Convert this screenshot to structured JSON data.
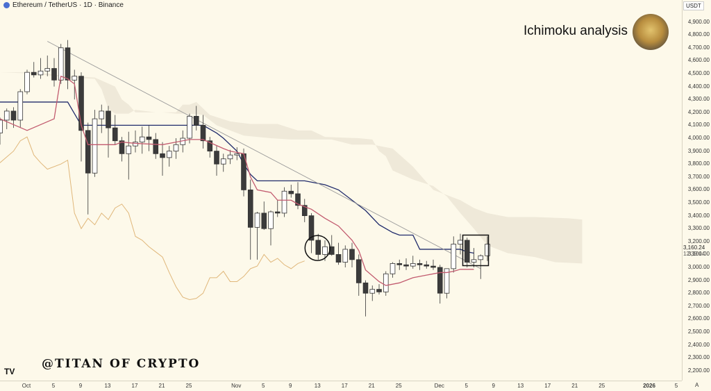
{
  "header": {
    "symbol_label": "Ethereum / TetherUS · 1D · Binance"
  },
  "title": "Ichimoku analysis",
  "watermark": "@TITAN OF CRYPTO",
  "logo_text": "TV",
  "currency_button": "USDT",
  "last_price": "3,160.24",
  "countdown": "12:39:14",
  "auto_button": "A",
  "colors": {
    "background": "#fdf9ea",
    "up": "#ffffff",
    "down": "#3b3b3b",
    "conversion": "#c25b6f",
    "base": "#1f2a6b",
    "lagging": "#e0b77a",
    "cloud": "#ece6d6",
    "trendline": "#999999"
  },
  "chart_data": {
    "type": "candlestick",
    "ylim": [
      2100,
      4950
    ],
    "y_ticks": [
      "4,900.00",
      "4,800.00",
      "4,700.00",
      "4,600.00",
      "4,500.00",
      "4,400.00",
      "4,300.00",
      "4,200.00",
      "4,100.00",
      "4,000.00",
      "3,900.00",
      "3,800.00",
      "3,700.00",
      "3,600.00",
      "3,500.00",
      "3,400.00",
      "3,300.00",
      "3,200.00",
      "3,100.00",
      "3,000.00",
      "2,900.00",
      "2,800.00",
      "2,700.00",
      "2,600.00",
      "2,500.00",
      "2,400.00",
      "2,300.00",
      "2,200.00"
    ],
    "x_ticks": [
      {
        "label": "Oct",
        "day": 0
      },
      {
        "label": "5",
        "day": 4
      },
      {
        "label": "9",
        "day": 8
      },
      {
        "label": "13",
        "day": 12
      },
      {
        "label": "17",
        "day": 16
      },
      {
        "label": "21",
        "day": 20
      },
      {
        "label": "25",
        "day": 24
      },
      {
        "label": "Nov",
        "day": 31
      },
      {
        "label": "5",
        "day": 35
      },
      {
        "label": "9",
        "day": 39
      },
      {
        "label": "13",
        "day": 43
      },
      {
        "label": "17",
        "day": 47
      },
      {
        "label": "21",
        "day": 51
      },
      {
        "label": "25",
        "day": 55
      },
      {
        "label": "Dec",
        "day": 61
      },
      {
        "label": "5",
        "day": 65
      },
      {
        "label": "9",
        "day": 69
      },
      {
        "label": "13",
        "day": 73
      },
      {
        "label": "17",
        "day": 77
      },
      {
        "label": "21",
        "day": 81
      },
      {
        "label": "25",
        "day": 85
      },
      {
        "label": "2026",
        "day": 92
      },
      {
        "label": "5",
        "day": 96
      }
    ],
    "candles": [
      [
        4040,
        4160,
        3950,
        4140
      ],
      [
        4140,
        4230,
        4070,
        4210
      ],
      [
        4210,
        4240,
        4080,
        4140
      ],
      [
        4140,
        4380,
        4080,
        4360
      ],
      [
        4360,
        4530,
        4340,
        4510
      ],
      [
        4510,
        4590,
        4470,
        4490
      ],
      [
        4490,
        4620,
        4460,
        4520
      ],
      [
        4520,
        4640,
        4480,
        4540
      ],
      [
        4540,
        4620,
        4400,
        4450
      ],
      [
        4450,
        4730,
        4420,
        4700
      ],
      [
        4700,
        4760,
        4380,
        4450
      ],
      [
        4450,
        4530,
        4300,
        4480
      ],
      [
        4480,
        4510,
        3820,
        4060
      ],
      [
        4060,
        4120,
        3410,
        3730
      ],
      [
        3730,
        4220,
        3700,
        4150
      ],
      [
        4150,
        4260,
        4040,
        4210
      ],
      [
        4210,
        4250,
        3850,
        4080
      ],
      [
        4080,
        4180,
        3950,
        3980
      ],
      [
        3980,
        4010,
        3820,
        3880
      ],
      [
        3880,
        4050,
        3680,
        3940
      ],
      [
        3940,
        4060,
        3890,
        3970
      ],
      [
        3970,
        4090,
        3880,
        4010
      ],
      [
        4010,
        4100,
        3900,
        3990
      ],
      [
        3990,
        4040,
        3840,
        3880
      ],
      [
        3880,
        3970,
        3710,
        3850
      ],
      [
        3850,
        3940,
        3780,
        3900
      ],
      [
        3900,
        4000,
        3840,
        3950
      ],
      [
        3950,
        4060,
        3890,
        4000
      ],
      [
        4000,
        4190,
        3960,
        4170
      ],
      [
        4170,
        4250,
        4060,
        4100
      ],
      [
        4100,
        4180,
        3920,
        3980
      ],
      [
        3980,
        4010,
        3850,
        3900
      ],
      [
        3900,
        3940,
        3710,
        3800
      ],
      [
        3800,
        3880,
        3740,
        3840
      ],
      [
        3840,
        3910,
        3800,
        3870
      ],
      [
        3870,
        3930,
        3830,
        3880
      ],
      [
        3880,
        3920,
        3550,
        3600
      ],
      [
        3600,
        3680,
        3060,
        3310
      ],
      [
        3310,
        3430,
        3060,
        3420
      ],
      [
        3420,
        3510,
        3290,
        3300
      ],
      [
        3300,
        3440,
        3170,
        3430
      ],
      [
        3430,
        3520,
        3390,
        3420
      ],
      [
        3420,
        3620,
        3390,
        3590
      ],
      [
        3590,
        3640,
        3540,
        3570
      ],
      [
        3570,
        3660,
        3450,
        3480
      ],
      [
        3480,
        3530,
        3350,
        3400
      ],
      [
        3400,
        3420,
        3110,
        3210
      ],
      [
        3210,
        3260,
        3060,
        3100
      ],
      [
        3100,
        3210,
        3050,
        3160
      ],
      [
        3160,
        3250,
        3090,
        3100
      ],
      [
        3100,
        3190,
        3020,
        3040
      ],
      [
        3040,
        3170,
        3000,
        3140
      ],
      [
        3140,
        3190,
        3000,
        3060
      ],
      [
        3060,
        3100,
        2780,
        2880
      ],
      [
        2880,
        2900,
        2620,
        2800
      ],
      [
        2800,
        2860,
        2740,
        2830
      ],
      [
        2830,
        2870,
        2790,
        2810
      ],
      [
        2810,
        2970,
        2780,
        2950
      ],
      [
        2950,
        3040,
        2920,
        3030
      ],
      [
        3030,
        3060,
        2980,
        3020
      ],
      [
        3020,
        3070,
        2980,
        3010
      ],
      [
        3010,
        3090,
        2990,
        3030
      ],
      [
        3030,
        3060,
        2980,
        3020
      ],
      [
        3020,
        3050,
        2990,
        3010
      ],
      [
        3010,
        3060,
        2980,
        3000
      ],
      [
        3000,
        3020,
        2720,
        2800
      ],
      [
        2800,
        2990,
        2760,
        2990
      ],
      [
        2990,
        3240,
        2960,
        3180
      ],
      [
        3180,
        3260,
        3100,
        3210
      ],
      [
        3210,
        3230,
        3000,
        3040
      ],
      [
        3040,
        3150,
        3000,
        3060
      ],
      [
        3060,
        3100,
        2910,
        3090
      ],
      [
        3090,
        3240,
        3050,
        3180
      ]
    ],
    "conversion_line": [
      [
        0,
        4150
      ],
      [
        4,
        4060
      ],
      [
        8,
        4150
      ],
      [
        9,
        4480
      ],
      [
        10,
        4460
      ],
      [
        11,
        4420
      ],
      [
        12,
        4100
      ],
      [
        13,
        3950
      ],
      [
        17,
        3950
      ],
      [
        18,
        3970
      ],
      [
        20,
        3960
      ],
      [
        24,
        3950
      ],
      [
        26,
        3970
      ],
      [
        28,
        3990
      ],
      [
        30,
        3990
      ],
      [
        33,
        3920
      ],
      [
        34,
        3900
      ],
      [
        36,
        3880
      ],
      [
        37,
        3700
      ],
      [
        38,
        3600
      ],
      [
        40,
        3580
      ],
      [
        41,
        3520
      ],
      [
        43,
        3520
      ],
      [
        44,
        3490
      ],
      [
        46,
        3450
      ],
      [
        48,
        3380
      ],
      [
        50,
        3320
      ],
      [
        52,
        3210
      ],
      [
        53,
        3130
      ],
      [
        54,
        2980
      ],
      [
        56,
        2890
      ],
      [
        57,
        2860
      ],
      [
        59,
        2880
      ],
      [
        61,
        2920
      ],
      [
        63,
        2940
      ],
      [
        64,
        2950
      ],
      [
        65,
        2960
      ],
      [
        66,
        2960
      ],
      [
        67,
        2970
      ],
      [
        68,
        2985
      ],
      [
        69,
        2985
      ],
      [
        70,
        2985
      ]
    ],
    "base_line": [
      [
        0,
        4280
      ],
      [
        10,
        4280
      ],
      [
        12,
        4100
      ],
      [
        30,
        4100
      ],
      [
        32,
        4040
      ],
      [
        33,
        4000
      ],
      [
        35,
        3900
      ],
      [
        36,
        3800
      ],
      [
        37,
        3720
      ],
      [
        38,
        3670
      ],
      [
        45,
        3670
      ],
      [
        48,
        3640
      ],
      [
        50,
        3600
      ],
      [
        52,
        3520
      ],
      [
        54,
        3440
      ],
      [
        56,
        3330
      ],
      [
        58,
        3270
      ],
      [
        59,
        3250
      ],
      [
        61,
        3250
      ],
      [
        62,
        3140
      ],
      [
        68,
        3140
      ],
      [
        69,
        3120
      ],
      [
        70,
        3110
      ]
    ],
    "lagging_span": [
      [
        0,
        3810
      ],
      [
        2,
        3900
      ],
      [
        3,
        3980
      ],
      [
        4,
        4010
      ],
      [
        5,
        3870
      ],
      [
        6,
        3810
      ],
      [
        7,
        3760
      ],
      [
        9,
        3800
      ],
      [
        10,
        3830
      ],
      [
        11,
        3420
      ],
      [
        12,
        3300
      ],
      [
        13,
        3380
      ],
      [
        14,
        3330
      ],
      [
        15,
        3420
      ],
      [
        16,
        3370
      ],
      [
        17,
        3460
      ],
      [
        18,
        3490
      ],
      [
        19,
        3420
      ],
      [
        20,
        3240
      ],
      [
        21,
        3210
      ],
      [
        22,
        3160
      ],
      [
        23,
        3120
      ],
      [
        24,
        3080
      ],
      [
        25,
        2960
      ],
      [
        26,
        2850
      ],
      [
        27,
        2770
      ],
      [
        28,
        2750
      ],
      [
        29,
        2760
      ],
      [
        30,
        2800
      ],
      [
        31,
        2920
      ],
      [
        32,
        2920
      ],
      [
        33,
        2970
      ],
      [
        34,
        2890
      ],
      [
        35,
        2890
      ],
      [
        36,
        2930
      ],
      [
        37,
        2990
      ],
      [
        38,
        3010
      ],
      [
        39,
        3100
      ],
      [
        40,
        3040
      ],
      [
        41,
        3070
      ],
      [
        42,
        3020
      ],
      [
        43,
        2990
      ],
      [
        44,
        3030
      ],
      [
        45,
        3050
      ]
    ],
    "cloud_a": [
      [
        0,
        4510
      ],
      [
        5,
        4510
      ],
      [
        10,
        4480
      ],
      [
        14,
        4470
      ],
      [
        17,
        4400
      ],
      [
        18,
        4300
      ],
      [
        19,
        4260
      ],
      [
        20,
        4200
      ],
      [
        24,
        4200
      ],
      [
        26,
        4190
      ],
      [
        28,
        4190
      ],
      [
        30,
        4180
      ],
      [
        32,
        4100
      ],
      [
        36,
        4020
      ],
      [
        40,
        4000
      ],
      [
        43,
        3990
      ],
      [
        46,
        3990
      ],
      [
        49,
        3990
      ],
      [
        52,
        3950
      ],
      [
        55,
        3950
      ],
      [
        58,
        3920
      ],
      [
        61,
        3780
      ],
      [
        64,
        3600
      ],
      [
        66,
        3560
      ],
      [
        68,
        3520
      ],
      [
        70,
        3460
      ],
      [
        72,
        3420
      ],
      [
        75,
        3390
      ],
      [
        79,
        3390
      ],
      [
        84,
        3380
      ],
      [
        86,
        3370
      ]
    ],
    "cloud_b": [
      [
        0,
        4510
      ],
      [
        5,
        4500
      ],
      [
        10,
        4470
      ],
      [
        14,
        4460
      ],
      [
        15,
        4380
      ],
      [
        16,
        4230
      ],
      [
        17,
        4190
      ],
      [
        19,
        4190
      ],
      [
        20,
        4220
      ],
      [
        23,
        4200
      ],
      [
        26,
        4200
      ],
      [
        27,
        4260
      ],
      [
        28,
        4260
      ],
      [
        29,
        4280
      ],
      [
        31,
        4180
      ],
      [
        34,
        4130
      ],
      [
        37,
        4110
      ],
      [
        41,
        4110
      ],
      [
        44,
        4060
      ],
      [
        46,
        4060
      ],
      [
        48,
        4010
      ],
      [
        53,
        4000
      ],
      [
        55,
        3990
      ],
      [
        56,
        3900
      ],
      [
        57,
        3860
      ],
      [
        58,
        3750
      ],
      [
        61,
        3680
      ],
      [
        64,
        3630
      ],
      [
        66,
        3550
      ],
      [
        68,
        3420
      ],
      [
        70,
        3300
      ],
      [
        72,
        3170
      ],
      [
        75,
        3110
      ],
      [
        79,
        3080
      ],
      [
        82,
        3040
      ],
      [
        86,
        3030
      ]
    ],
    "trendline": [
      [
        7,
        4750
      ],
      [
        71,
        2990
      ]
    ]
  }
}
